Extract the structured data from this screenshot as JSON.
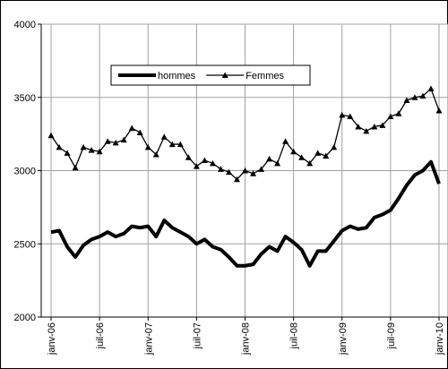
{
  "chart_data": {
    "type": "line",
    "categories": [
      "janv-06",
      null,
      null,
      null,
      null,
      null,
      "juil-06",
      null,
      null,
      null,
      null,
      null,
      "janv-07",
      null,
      null,
      null,
      null,
      null,
      "juil-07",
      null,
      null,
      null,
      null,
      null,
      "janv-08",
      null,
      null,
      null,
      null,
      null,
      "juil-08",
      null,
      null,
      null,
      null,
      null,
      "janv-09",
      null,
      null,
      null,
      null,
      null,
      "juil-09",
      null,
      null,
      null,
      null,
      null,
      "janv-10"
    ],
    "series": [
      {
        "name": "hommes",
        "color": "#000000",
        "marker": "none",
        "values": [
          2580,
          2590,
          2480,
          2410,
          2490,
          2530,
          2550,
          2580,
          2550,
          2570,
          2620,
          2610,
          2620,
          2550,
          2660,
          2610,
          2580,
          2550,
          2500,
          2530,
          2480,
          2460,
          2410,
          2350,
          2350,
          2360,
          2430,
          2480,
          2450,
          2550,
          2510,
          2460,
          2350,
          2450,
          2450,
          2520,
          2590,
          2620,
          2600,
          2610,
          2680,
          2700,
          2730,
          2810,
          2900,
          2970,
          3000,
          3060,
          2910
        ]
      },
      {
        "name": "Femmes",
        "color": "#000000",
        "marker": "triangle",
        "values": [
          3240,
          3160,
          3120,
          3020,
          3160,
          3140,
          3130,
          3200,
          3190,
          3210,
          3290,
          3260,
          3160,
          3110,
          3230,
          3180,
          3180,
          3090,
          3030,
          3070,
          3050,
          3010,
          2990,
          2940,
          3000,
          2980,
          3010,
          3080,
          3050,
          3200,
          3130,
          3090,
          3050,
          3120,
          3100,
          3160,
          3380,
          3370,
          3300,
          3270,
          3300,
          3310,
          3370,
          3390,
          3480,
          3500,
          3510,
          3560,
          3410
        ]
      }
    ],
    "ylim": [
      2000,
      4000
    ],
    "yticks": [
      2000,
      2500,
      3000,
      3500,
      4000
    ],
    "grid": true,
    "legend": "top"
  }
}
